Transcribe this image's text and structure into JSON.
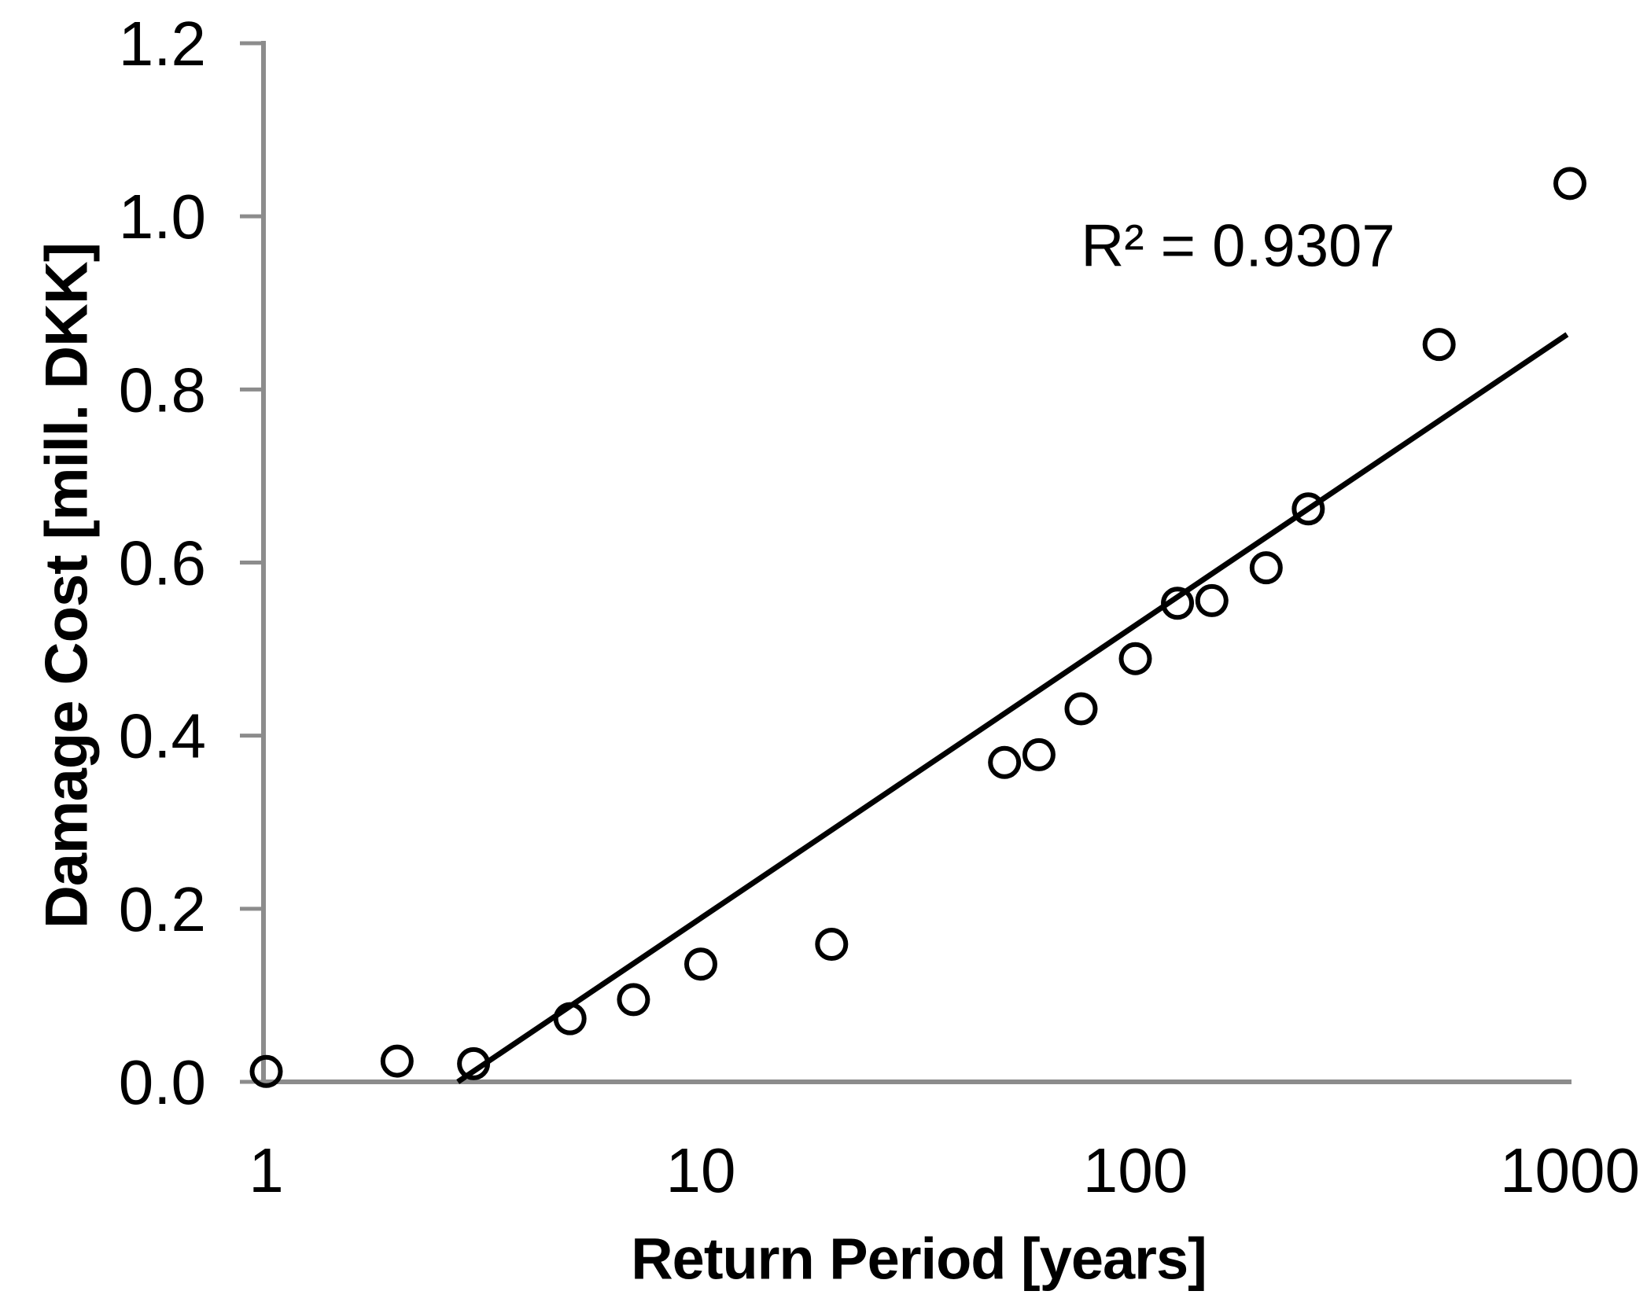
{
  "chart_data": {
    "type": "scatter",
    "title": "",
    "xlabel": "Return Period [years]",
    "ylabel": "Damage Cost [mill. DKK]",
    "x_scale": "log",
    "xlim": [
      1,
      1000
    ],
    "ylim": [
      0.0,
      1.2
    ],
    "grid": false,
    "legend": "none",
    "x_ticks": [
      {
        "value": 1,
        "label": "1"
      },
      {
        "value": 10,
        "label": "10"
      },
      {
        "value": 100,
        "label": "100"
      },
      {
        "value": 1000,
        "label": "1000"
      }
    ],
    "y_ticks": [
      {
        "value": 0.0,
        "label": "0.0"
      },
      {
        "value": 0.2,
        "label": "0.2"
      },
      {
        "value": 0.4,
        "label": "0.4"
      },
      {
        "value": 0.6,
        "label": "0.6"
      },
      {
        "value": 0.8,
        "label": "0.8"
      },
      {
        "value": 1.0,
        "label": "1.0"
      },
      {
        "value": 1.2,
        "label": "1.2"
      }
    ],
    "series": [
      {
        "name": "damage-cost-vs-return-period",
        "marker": "open-circle",
        "points": [
          {
            "x": 1,
            "y": 0.012
          },
          {
            "x": 2,
            "y": 0.024
          },
          {
            "x": 3,
            "y": 0.021
          },
          {
            "x": 5,
            "y": 0.073
          },
          {
            "x": 7,
            "y": 0.095
          },
          {
            "x": 10,
            "y": 0.136
          },
          {
            "x": 20,
            "y": 0.159
          },
          {
            "x": 50,
            "y": 0.369
          },
          {
            "x": 60,
            "y": 0.378
          },
          {
            "x": 75,
            "y": 0.431
          },
          {
            "x": 100,
            "y": 0.489
          },
          {
            "x": 125,
            "y": 0.553
          },
          {
            "x": 150,
            "y": 0.556
          },
          {
            "x": 200,
            "y": 0.594
          },
          {
            "x": 250,
            "y": 0.662
          },
          {
            "x": 500,
            "y": 0.852
          },
          {
            "x": 1000,
            "y": 1.038
          }
        ]
      }
    ],
    "trendline": {
      "x": [
        2.76,
        985
      ],
      "y": [
        0.0,
        0.8635
      ],
      "annotation": "R² = 0.9307"
    },
    "colors": {
      "axis": "#8C8C8C",
      "marker": "#000000",
      "trendline": "#000000",
      "text": "#000000"
    }
  }
}
